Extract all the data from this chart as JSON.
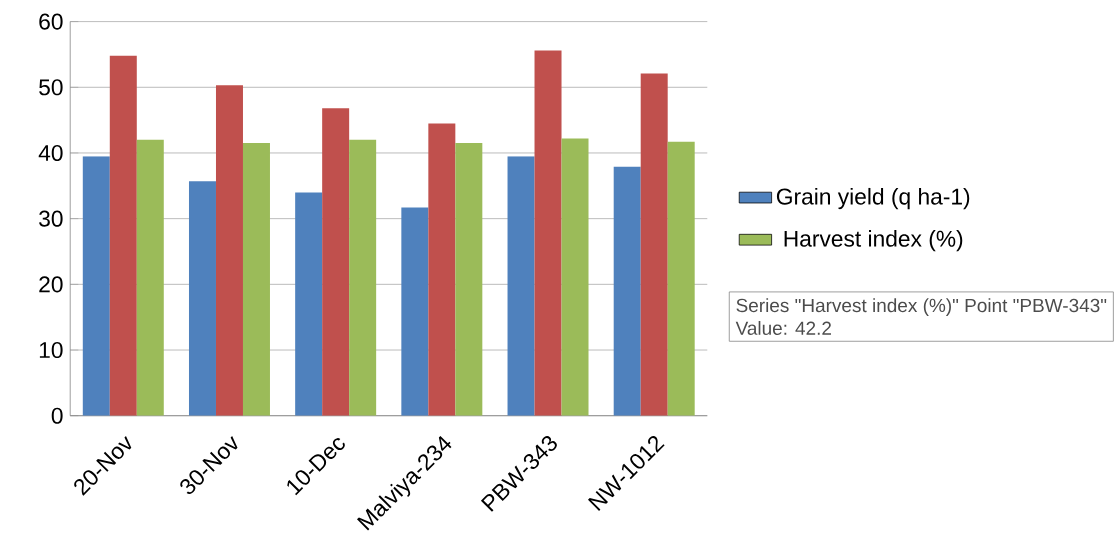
{
  "chart_data": {
    "type": "bar",
    "categories": [
      "20-Nov",
      "30-Nov",
      "10-Dec",
      "Malviya-234",
      "PBW-343",
      "NW-1012"
    ],
    "series": [
      {
        "name": "Grain yield  (q ha-1)",
        "color": "#4f81bd",
        "values": [
          39.5,
          35.7,
          34.0,
          31.7,
          39.5,
          37.9
        ]
      },
      {
        "color": "#c0504d",
        "values": [
          54.8,
          50.3,
          46.8,
          44.5,
          55.6,
          52.1
        ]
      },
      {
        "name": "Harvest index (%)",
        "color": "#9bbb59",
        "values": [
          42.0,
          41.5,
          42.0,
          41.5,
          42.2,
          41.7
        ]
      }
    ],
    "ylim": [
      0,
      60
    ],
    "yticks": [
      0,
      10,
      20,
      30,
      40,
      50,
      60
    ],
    "grid": "y",
    "legend": "right",
    "annotations": [
      "Series \"Harvest index (%)\" Point \"PBW-343\"",
      "Value: 42.2"
    ]
  }
}
